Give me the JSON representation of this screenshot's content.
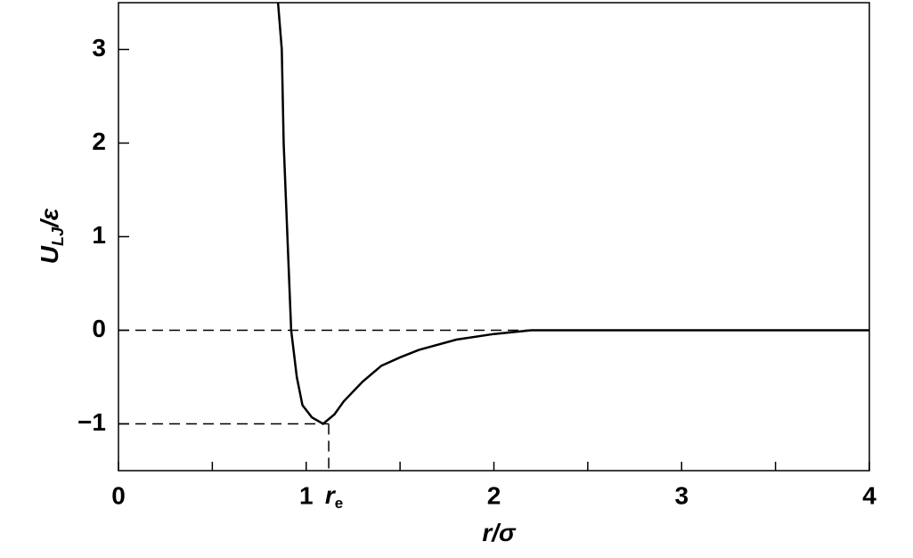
{
  "chart_data": {
    "type": "line",
    "x": [
      0.85,
      0.87,
      0.88,
      0.9,
      0.92,
      0.95,
      0.98,
      1.03,
      1.09,
      1.15,
      1.2,
      1.3,
      1.4,
      1.5,
      1.6,
      1.8,
      2.0,
      2.2,
      4
    ],
    "values": [
      3.5,
      3,
      2,
      1,
      0,
      -0.5,
      -0.8,
      -0.93,
      -1,
      -0.9,
      -0.76,
      -0.55,
      -0.38,
      -0.29,
      -0.21,
      -0.1,
      -0.04,
      0,
      0
    ],
    "color": "#000000",
    "xlim": [
      0,
      4
    ],
    "ylim": [
      -1.5,
      3.5
    ],
    "xticks": [
      0,
      1,
      2,
      3,
      4
    ],
    "xminorticks": [
      0.5,
      1.5,
      2.5,
      3.5
    ],
    "yticks": [
      {
        "value": -1,
        "label": "−1"
      },
      0,
      1,
      2,
      3
    ],
    "xlabel": {
      "main": "r",
      "rest": "/σ"
    },
    "ylabel": {
      "main": "U",
      "sub": "LJ",
      "rest": "/ε"
    },
    "hlines": [
      0,
      -1
    ],
    "re": {
      "value": 1.12,
      "main": "r",
      "sub": "e"
    }
  }
}
